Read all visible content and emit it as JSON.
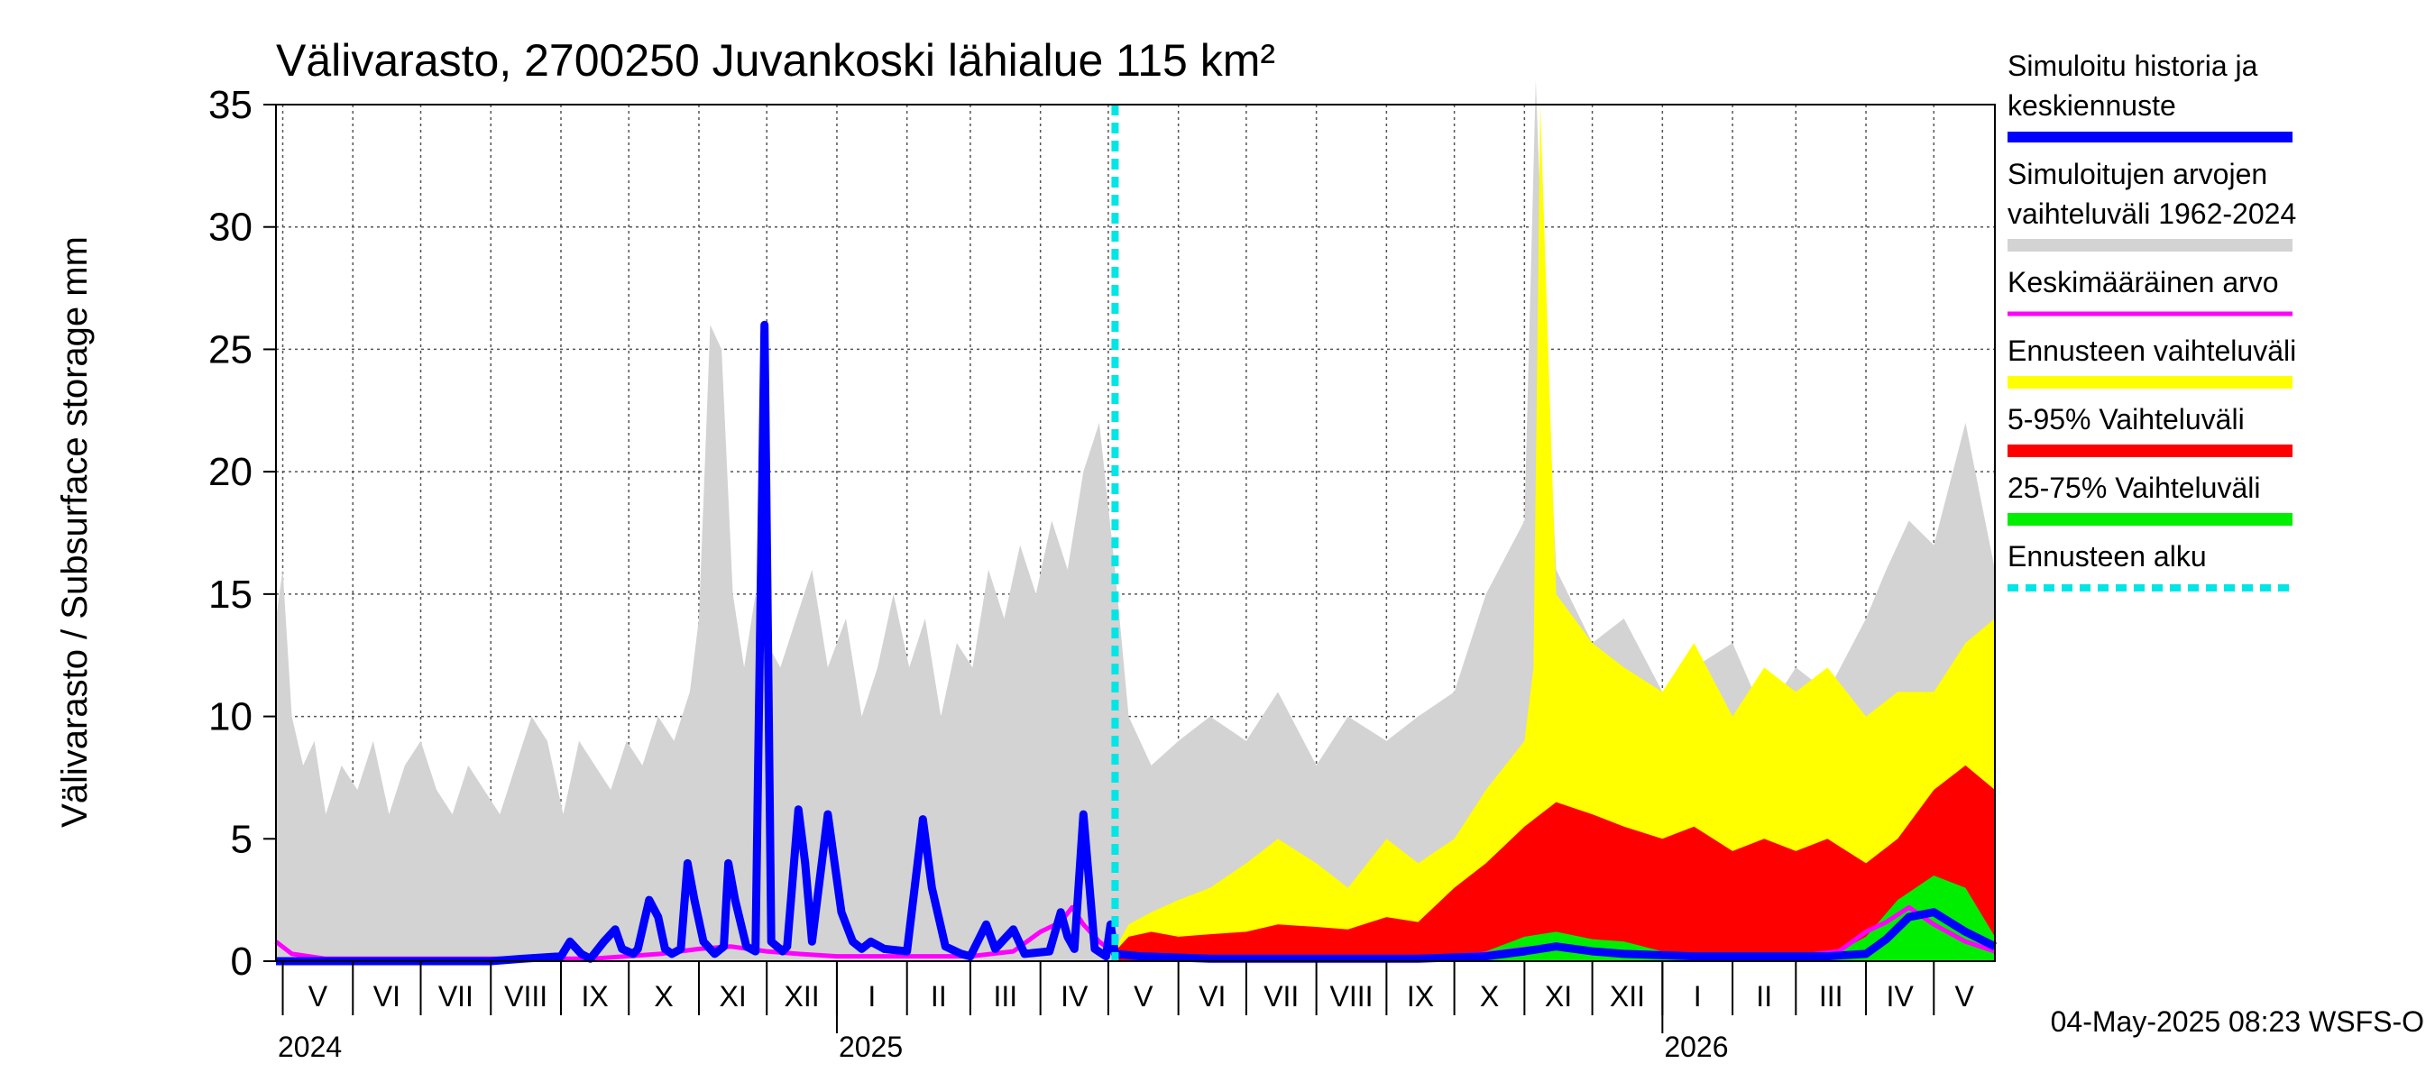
{
  "chart_data": {
    "type": "area",
    "title": "Välivarasto, 2700250 Juvankoski lähialue 115 km²",
    "ylabel": "Välivarasto / Subsurface storage  mm",
    "ylim": [
      0,
      35
    ],
    "yticks": [
      0,
      5,
      10,
      15,
      20,
      25,
      30,
      35
    ],
    "x_start": "2024-04-28",
    "x_end": "2026-05-28",
    "forecast_start": "2025-05-04",
    "months": [
      {
        "label": "V",
        "start": "2024-05-01"
      },
      {
        "label": "VI",
        "start": "2024-06-01"
      },
      {
        "label": "VII",
        "start": "2024-07-01"
      },
      {
        "label": "VIII",
        "start": "2024-08-01"
      },
      {
        "label": "IX",
        "start": "2024-09-01"
      },
      {
        "label": "X",
        "start": "2024-10-01"
      },
      {
        "label": "XI",
        "start": "2024-11-01"
      },
      {
        "label": "XII",
        "start": "2024-12-01"
      },
      {
        "label": "I",
        "start": "2025-01-01"
      },
      {
        "label": "II",
        "start": "2025-02-01"
      },
      {
        "label": "III",
        "start": "2025-03-01"
      },
      {
        "label": "IV",
        "start": "2025-04-01"
      },
      {
        "label": "V",
        "start": "2025-05-01"
      },
      {
        "label": "VI",
        "start": "2025-06-01"
      },
      {
        "label": "VII",
        "start": "2025-07-01"
      },
      {
        "label": "VIII",
        "start": "2025-08-01"
      },
      {
        "label": "IX",
        "start": "2025-09-01"
      },
      {
        "label": "X",
        "start": "2025-10-01"
      },
      {
        "label": "XI",
        "start": "2025-11-01"
      },
      {
        "label": "XII",
        "start": "2025-12-01"
      },
      {
        "label": "I",
        "start": "2026-01-01"
      },
      {
        "label": "II",
        "start": "2026-02-01"
      },
      {
        "label": "III",
        "start": "2026-03-01"
      },
      {
        "label": "IV",
        "start": "2026-04-01"
      },
      {
        "label": "V",
        "start": "2026-05-01"
      }
    ],
    "years": [
      {
        "label": "2024",
        "date": "2024-04-28"
      },
      {
        "label": "2025",
        "date": "2025-01-01"
      },
      {
        "label": "2026",
        "date": "2026-01-01"
      }
    ],
    "series": [
      {
        "name": "Simuloitujen arvojen vaihteluväli 1962-2024",
        "color": "#d3d3d3",
        "style": "band",
        "x": [
          "2024-04-28",
          "2024-05-01",
          "2024-05-05",
          "2024-05-10",
          "2024-05-15",
          "2024-05-20",
          "2024-05-27",
          "2024-06-03",
          "2024-06-10",
          "2024-06-17",
          "2024-06-24",
          "2024-07-01",
          "2024-07-08",
          "2024-07-15",
          "2024-07-22",
          "2024-07-29",
          "2024-08-05",
          "2024-08-12",
          "2024-08-19",
          "2024-08-26",
          "2024-09-02",
          "2024-09-09",
          "2024-09-16",
          "2024-09-23",
          "2024-09-30",
          "2024-10-07",
          "2024-10-14",
          "2024-10-21",
          "2024-10-28",
          "2024-11-01",
          "2024-11-06",
          "2024-11-11",
          "2024-11-16",
          "2024-11-21",
          "2024-11-26",
          "2024-12-01",
          "2024-12-07",
          "2024-12-14",
          "2024-12-21",
          "2024-12-28",
          "2025-01-05",
          "2025-01-12",
          "2025-01-19",
          "2025-01-26",
          "2025-02-02",
          "2025-02-09",
          "2025-02-16",
          "2025-02-23",
          "2025-03-02",
          "2025-03-09",
          "2025-03-16",
          "2025-03-23",
          "2025-03-30",
          "2025-04-06",
          "2025-04-13",
          "2025-04-20",
          "2025-04-27",
          "2025-05-04",
          "2025-05-10",
          "2025-05-20",
          "2025-06-01",
          "2025-06-15",
          "2025-07-01",
          "2025-07-15",
          "2025-08-01",
          "2025-08-15",
          "2025-09-01",
          "2025-09-15",
          "2025-10-01",
          "2025-10-15",
          "2025-11-01",
          "2025-11-06",
          "2025-11-10",
          "2025-11-15",
          "2025-12-01",
          "2025-12-15",
          "2026-01-01",
          "2026-01-15",
          "2026-02-01",
          "2026-02-15",
          "2026-03-01",
          "2026-03-15",
          "2026-04-01",
          "2026-04-10",
          "2026-04-20",
          "2026-05-01",
          "2026-05-15",
          "2026-05-28"
        ],
        "low": [
          0,
          0,
          0,
          0,
          0,
          0,
          0,
          0,
          0,
          0,
          0,
          0,
          0,
          0,
          0,
          0,
          0,
          0,
          0,
          0,
          0,
          0,
          0,
          0,
          0,
          0,
          0,
          0,
          0,
          0,
          0,
          0,
          0,
          0,
          0,
          0,
          0,
          0,
          0,
          0,
          0,
          0,
          0,
          0,
          0,
          0,
          0,
          0,
          0,
          0,
          0,
          0,
          0,
          0,
          0,
          0,
          0,
          0,
          0,
          0,
          0,
          0,
          0,
          0,
          0,
          0,
          0,
          0,
          0,
          0,
          0,
          0,
          0,
          0,
          0,
          0,
          0,
          0,
          0,
          0,
          0,
          0,
          0,
          0,
          0,
          0,
          0,
          0
        ],
        "high": [
          14,
          16,
          10,
          8,
          9,
          6,
          8,
          7,
          9,
          6,
          8,
          9,
          7,
          6,
          8,
          7,
          6,
          8,
          10,
          9,
          6,
          9,
          8,
          7,
          9,
          8,
          10,
          9,
          11,
          14,
          26,
          25,
          15,
          12,
          15,
          13,
          12,
          14,
          16,
          12,
          14,
          10,
          12,
          15,
          12,
          14,
          10,
          13,
          12,
          16,
          14,
          17,
          15,
          18,
          16,
          20,
          22,
          16,
          10,
          8,
          9,
          10,
          9,
          11,
          8,
          10,
          9,
          10,
          11,
          15,
          18,
          36,
          26,
          16,
          13,
          14,
          11,
          12,
          13,
          10,
          12,
          11,
          14,
          16,
          18,
          17,
          22,
          16
        ]
      },
      {
        "name": "Ennusteen vaihteluväli",
        "color": "#ffff00",
        "style": "band",
        "x": [
          "2025-05-04",
          "2025-05-10",
          "2025-05-20",
          "2025-06-01",
          "2025-06-15",
          "2025-07-01",
          "2025-07-15",
          "2025-08-01",
          "2025-08-15",
          "2025-09-01",
          "2025-09-15",
          "2025-10-01",
          "2025-10-15",
          "2025-11-01",
          "2025-11-05",
          "2025-11-08",
          "2025-11-15",
          "2025-12-01",
          "2025-12-15",
          "2026-01-01",
          "2026-01-15",
          "2026-02-01",
          "2026-02-15",
          "2026-03-01",
          "2026-03-15",
          "2026-04-01",
          "2026-04-15",
          "2026-05-01",
          "2026-05-15",
          "2026-05-28"
        ],
        "low": [
          0,
          0,
          0,
          0,
          0,
          0,
          0,
          0,
          0,
          0,
          0,
          0,
          0,
          0,
          0,
          0,
          0,
          0,
          0,
          0,
          0,
          0,
          0,
          0,
          0,
          0,
          0,
          0,
          0,
          0
        ],
        "high": [
          0.5,
          1.5,
          2,
          2.5,
          3,
          4,
          5,
          4,
          3,
          5,
          4,
          5,
          7,
          9,
          12,
          35,
          15,
          13,
          12,
          11,
          13,
          10,
          12,
          11,
          12,
          10,
          11,
          11,
          13,
          14
        ]
      },
      {
        "name": "5-95% Vaihteluväli",
        "color": "#ff0000",
        "style": "band",
        "x": [
          "2025-05-04",
          "2025-05-10",
          "2025-05-20",
          "2025-06-01",
          "2025-06-15",
          "2025-07-01",
          "2025-07-15",
          "2025-08-01",
          "2025-08-15",
          "2025-09-01",
          "2025-09-15",
          "2025-10-01",
          "2025-10-15",
          "2025-11-01",
          "2025-11-15",
          "2025-12-01",
          "2025-12-15",
          "2026-01-01",
          "2026-01-15",
          "2026-02-01",
          "2026-02-15",
          "2026-03-01",
          "2026-03-15",
          "2026-04-01",
          "2026-04-15",
          "2026-05-01",
          "2026-05-15",
          "2026-05-28"
        ],
        "low": [
          0,
          0,
          0,
          0,
          0,
          0,
          0,
          0,
          0,
          0,
          0,
          0,
          0,
          0,
          0,
          0,
          0,
          0,
          0,
          0,
          0,
          0,
          0,
          0,
          0,
          0,
          0,
          0
        ],
        "high": [
          0.4,
          1,
          1.2,
          1,
          1.1,
          1.2,
          1.5,
          1.4,
          1.3,
          1.8,
          1.6,
          3,
          4,
          5.5,
          6.5,
          6,
          5.5,
          5,
          5.5,
          4.5,
          5,
          4.5,
          5,
          4,
          5,
          7,
          8,
          7
        ]
      },
      {
        "name": "25-75% Vaihteluväli",
        "color": "#00ee00",
        "style": "band",
        "x": [
          "2025-05-04",
          "2025-06-01",
          "2025-07-01",
          "2025-08-01",
          "2025-09-01",
          "2025-10-01",
          "2025-10-15",
          "2025-11-01",
          "2025-11-15",
          "2025-12-01",
          "2025-12-15",
          "2026-01-01",
          "2026-02-01",
          "2026-03-01",
          "2026-03-20",
          "2026-04-01",
          "2026-04-15",
          "2026-05-01",
          "2026-05-15",
          "2026-05-28"
        ],
        "low": [
          0,
          0,
          0,
          0,
          0,
          0,
          0,
          0,
          0,
          0,
          0,
          0,
          0,
          0,
          0,
          0,
          0,
          0,
          0,
          0
        ],
        "high": [
          0,
          0,
          0,
          0,
          0,
          0.2,
          0.4,
          1,
          1.2,
          0.9,
          0.8,
          0.4,
          0.3,
          0.3,
          0.4,
          1,
          2.5,
          3.5,
          3,
          1
        ]
      },
      {
        "name": "Keskimääräinen arvo",
        "color": "#ff00ff",
        "style": "line",
        "x": [
          "2024-04-28",
          "2024-05-05",
          "2024-05-20",
          "2024-06-15",
          "2024-07-15",
          "2024-08-15",
          "2024-09-15",
          "2024-10-15",
          "2024-11-01",
          "2024-11-15",
          "2024-12-01",
          "2024-12-15",
          "2025-01-01",
          "2025-02-01",
          "2025-03-01",
          "2025-03-20",
          "2025-04-01",
          "2025-04-10",
          "2025-04-15",
          "2025-04-20",
          "2025-04-27",
          "2025-05-04",
          "2025-05-15",
          "2025-06-15",
          "2025-07-15",
          "2025-08-15",
          "2025-09-15",
          "2025-10-15",
          "2025-11-01",
          "2025-11-15",
          "2025-12-01",
          "2025-12-15",
          "2026-01-01",
          "2026-02-01",
          "2026-03-01",
          "2026-03-20",
          "2026-04-01",
          "2026-04-10",
          "2026-04-20",
          "2026-05-01",
          "2026-05-15",
          "2026-05-28"
        ],
        "y": [
          0.8,
          0.3,
          0.1,
          0.1,
          0.1,
          0.1,
          0.1,
          0.3,
          0.5,
          0.6,
          0.4,
          0.3,
          0.2,
          0.2,
          0.2,
          0.4,
          1.2,
          1.6,
          2.2,
          1.5,
          0.8,
          0.3,
          0.1,
          0.1,
          0.1,
          0.1,
          0.1,
          0.3,
          0.5,
          0.6,
          0.4,
          0.3,
          0.2,
          0.2,
          0.2,
          0.4,
          1.2,
          1.6,
          2.2,
          1.5,
          0.8,
          0.4
        ]
      },
      {
        "name": "Simuloitu historia ja keskiennuste",
        "color": "#0000ff",
        "style": "line",
        "x": [
          "2024-04-28",
          "2024-05-05",
          "2024-06-15",
          "2024-07-15",
          "2024-08-01",
          "2024-08-15",
          "2024-09-01",
          "2024-09-05",
          "2024-09-10",
          "2024-09-14",
          "2024-09-20",
          "2024-09-25",
          "2024-09-28",
          "2024-10-03",
          "2024-10-05",
          "2024-10-10",
          "2024-10-14",
          "2024-10-17",
          "2024-10-20",
          "2024-10-24",
          "2024-10-27",
          "2024-10-30",
          "2024-11-03",
          "2024-11-08",
          "2024-11-12",
          "2024-11-14",
          "2024-11-17",
          "2024-11-22",
          "2024-11-26",
          "2024-11-30",
          "2024-12-03",
          "2024-12-08",
          "2024-12-10",
          "2024-12-15",
          "2024-12-18",
          "2024-12-21",
          "2024-12-28",
          "2025-01-03",
          "2025-01-08",
          "2025-01-12",
          "2025-01-16",
          "2025-01-22",
          "2025-02-01",
          "2025-02-08",
          "2025-02-12",
          "2025-02-18",
          "2025-02-25",
          "2025-03-01",
          "2025-03-08",
          "2025-03-12",
          "2025-03-20",
          "2025-03-25",
          "2025-04-05",
          "2025-04-10",
          "2025-04-13",
          "2025-04-16",
          "2025-04-20",
          "2025-04-25",
          "2025-04-30",
          "2025-05-02",
          "2025-05-04",
          "2025-05-15",
          "2025-06-15",
          "2025-07-15",
          "2025-08-15",
          "2025-09-15",
          "2025-10-15",
          "2025-11-01",
          "2025-11-15",
          "2025-12-01",
          "2025-12-15",
          "2026-01-15",
          "2026-02-15",
          "2026-03-15",
          "2026-04-01",
          "2026-04-10",
          "2026-04-20",
          "2026-05-01",
          "2026-05-15",
          "2026-05-28"
        ],
        "y": [
          0,
          0,
          0,
          0,
          0,
          0.1,
          0.2,
          0.8,
          0.3,
          0.1,
          0.8,
          1.3,
          0.5,
          0.3,
          0.5,
          2.5,
          1.8,
          0.5,
          0.3,
          0.5,
          4,
          2.5,
          0.8,
          0.3,
          0.6,
          4,
          2.5,
          0.6,
          0.4,
          26,
          0.8,
          0.4,
          0.6,
          6.2,
          4,
          0.8,
          6,
          2,
          0.8,
          0.5,
          0.8,
          0.5,
          0.4,
          5.8,
          3,
          0.6,
          0.3,
          0.2,
          1.5,
          0.5,
          1.3,
          0.3,
          0.4,
          2,
          1,
          0.5,
          6,
          0.5,
          0.2,
          1.5,
          0.3,
          0.2,
          0.1,
          0.1,
          0.1,
          0.1,
          0.2,
          0.4,
          0.6,
          0.4,
          0.3,
          0.2,
          0.2,
          0.2,
          0.3,
          0.9,
          1.8,
          2,
          1.2,
          0.6
        ]
      },
      {
        "name": "Ennusteen alku",
        "color": "#00e5e5",
        "style": "vline",
        "x": [
          "2025-05-04"
        ]
      }
    ],
    "legend_placement": "right",
    "grid": true
  },
  "footer_timestamp": "04-May-2025 08:23 WSFS-O"
}
